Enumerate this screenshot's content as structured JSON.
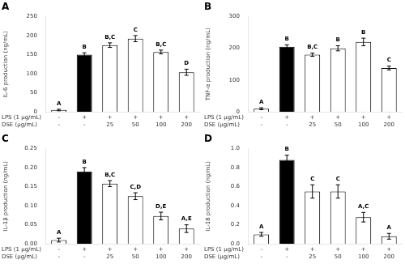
{
  "chart_data": [
    {
      "type": "bar",
      "title": "A",
      "y_label": "IL-6 production (ng/mL)",
      "category_rows": [
        "LPS (1 μg/mL)",
        "DSE (μg/mL)"
      ],
      "categories": [
        [
          "-",
          "-"
        ],
        [
          "+",
          "-"
        ],
        [
          "+",
          "25"
        ],
        [
          "+",
          "50"
        ],
        [
          "+",
          "100"
        ],
        [
          "+",
          "200"
        ]
      ],
      "values": [
        5,
        150,
        175,
        192,
        157,
        104
      ],
      "errors": [
        2,
        5,
        6,
        8,
        5,
        8
      ],
      "sig_labels": [
        "A",
        "B",
        "B,C",
        "C",
        "B,C",
        "D"
      ],
      "colors": [
        "white",
        "black",
        "white",
        "white",
        "white",
        "white"
      ],
      "ylim": [
        0,
        250
      ],
      "yticks": [
        0,
        50,
        100,
        150,
        200,
        250
      ],
      "grid": false
    },
    {
      "type": "bar",
      "title": "B",
      "y_label": "TNF-α production (ng/mL)",
      "category_rows": [
        "LPS (1 μg/mL)",
        "DSE (μg/mL)"
      ],
      "categories": [
        [
          "-",
          "-"
        ],
        [
          "+",
          "-"
        ],
        [
          "+",
          "25"
        ],
        [
          "+",
          "50"
        ],
        [
          "+",
          "100"
        ],
        [
          "+",
          "200"
        ]
      ],
      "values": [
        10,
        205,
        180,
        200,
        220,
        138
      ],
      "errors": [
        3,
        6,
        5,
        8,
        12,
        6
      ],
      "sig_labels": [
        "A",
        "B",
        "B,C",
        "B",
        "B",
        "C"
      ],
      "colors": [
        "white",
        "black",
        "white",
        "white",
        "white",
        "white"
      ],
      "ylim": [
        0,
        300
      ],
      "yticks": [
        0,
        100,
        200,
        300
      ],
      "grid": false
    },
    {
      "type": "bar",
      "title": "C",
      "y_label": "IL-1β production (ng/mL)",
      "category_rows": [
        "LPS (1 μg/mL)",
        "DSE (μg/mL)"
      ],
      "categories": [
        [
          "-",
          "-"
        ],
        [
          "+",
          "-"
        ],
        [
          "+",
          "25"
        ],
        [
          "+",
          "50"
        ],
        [
          "+",
          "100"
        ],
        [
          "+",
          "200"
        ]
      ],
      "values": [
        0.01,
        0.19,
        0.158,
        0.125,
        0.073,
        0.04
      ],
      "errors": [
        0.005,
        0.01,
        0.008,
        0.009,
        0.01,
        0.01
      ],
      "sig_labels": [
        "A",
        "B",
        "B,C",
        "C,D",
        "D,E",
        "A,E"
      ],
      "colors": [
        "white",
        "black",
        "white",
        "white",
        "white",
        "white"
      ],
      "ylim": [
        0,
        0.25
      ],
      "yticks": [
        {
          "value": 0,
          "label": "0.00"
        },
        0.05,
        {
          "value": 0.1,
          "label": "0.10"
        },
        0.15,
        {
          "value": 0.2,
          "label": "0.20"
        },
        0.25
      ],
      "grid": false
    },
    {
      "type": "bar",
      "title": "D",
      "y_label": "IL-18 production (ng/mL)",
      "category_rows": [
        "LPS (1 μg/mL)",
        "DSE (μg/mL)"
      ],
      "categories": [
        [
          "-",
          "-"
        ],
        [
          "+",
          "-"
        ],
        [
          "+",
          "25"
        ],
        [
          "+",
          "50"
        ],
        [
          "+",
          "100"
        ],
        [
          "+",
          "200"
        ]
      ],
      "values": [
        0.1,
        0.88,
        0.55,
        0.55,
        0.28,
        0.08
      ],
      "errors": [
        0.02,
        0.05,
        0.07,
        0.07,
        0.05,
        0.03
      ],
      "sig_labels": [
        "A",
        "B",
        "C",
        "C",
        "A,C",
        "A"
      ],
      "colors": [
        "white",
        "black",
        "white",
        "white",
        "white",
        "white"
      ],
      "ylim": [
        0,
        1.0
      ],
      "yticks": [
        {
          "value": 0,
          "label": "0.0"
        },
        0.2,
        0.4,
        0.6,
        0.8,
        {
          "value": 1.0,
          "label": "1.0"
        }
      ],
      "grid": false
    }
  ]
}
